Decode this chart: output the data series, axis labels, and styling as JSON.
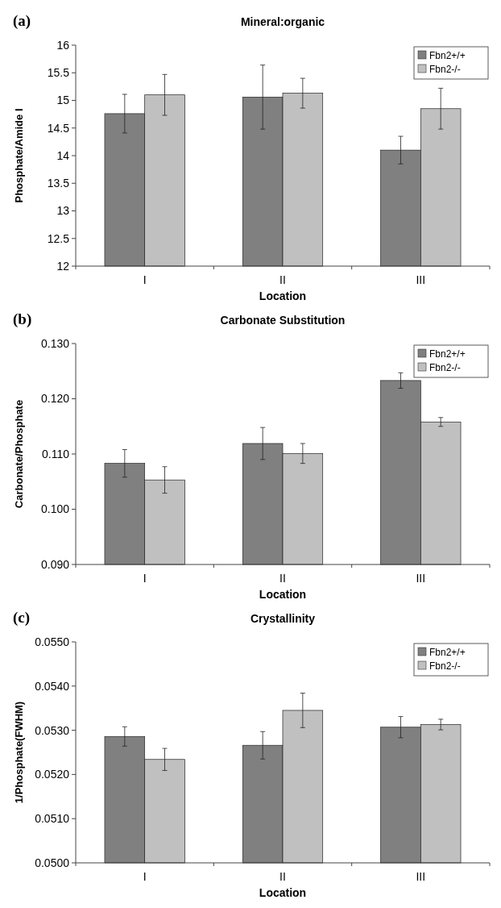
{
  "chart_data": [
    {
      "type": "bar",
      "title": "Mineral:organic",
      "xlabel": "Location",
      "ylabel": "Phosphate/Amide I",
      "annotations": [
        "(a)"
      ],
      "categories": [
        "I",
        "II",
        "III"
      ],
      "ylim": [
        12,
        16
      ],
      "yticks": [
        12,
        12.5,
        13,
        13.5,
        14,
        14.5,
        15,
        15.5,
        16
      ],
      "legend": "top right",
      "series": [
        {
          "name": "Fbn2+/+",
          "color": "#808080",
          "values": [
            14.76,
            15.06,
            14.1
          ],
          "errors": [
            0.35,
            0.58,
            0.25
          ]
        },
        {
          "name": "Fbn2-/-",
          "color": "#c0c0c0",
          "values": [
            15.1,
            15.13,
            14.85
          ],
          "errors": [
            0.37,
            0.27,
            0.37
          ]
        }
      ]
    },
    {
      "type": "bar",
      "title": "Carbonate Substitution",
      "xlabel": "Location",
      "ylabel": "Carbonate/Phosphate",
      "annotations": [
        "(b)"
      ],
      "categories": [
        "I",
        "II",
        "III"
      ],
      "ylim": [
        0.09,
        0.13
      ],
      "yticks": [
        {
          "value": 0.09,
          "label": "0.090"
        },
        {
          "value": 0.1,
          "label": "0.100"
        },
        {
          "value": 0.11,
          "label": "0.110"
        },
        {
          "value": 0.12,
          "label": "0.120"
        },
        {
          "value": 0.13,
          "label": "0.130"
        }
      ],
      "legend": "top right",
      "series": [
        {
          "name": "Fbn2+/+",
          "color": "#808080",
          "values": [
            0.1083,
            0.1119,
            0.1233
          ],
          "errors": [
            0.0025,
            0.0029,
            0.0014
          ]
        },
        {
          "name": "Fbn2-/-",
          "color": "#c0c0c0",
          "values": [
            0.1053,
            0.1101,
            0.1158
          ],
          "errors": [
            0.0024,
            0.0018,
            0.0008
          ]
        }
      ]
    },
    {
      "type": "bar",
      "title": "Crystallinity",
      "xlabel": "Location",
      "ylabel": "1/Phosphate(FWHM)",
      "annotations": [
        "(c)"
      ],
      "categories": [
        "I",
        "II",
        "III"
      ],
      "ylim": [
        0.05,
        0.055
      ],
      "yticks": [
        {
          "value": 0.05,
          "label": "0.0500"
        },
        {
          "value": 0.051,
          "label": "0.0510"
        },
        {
          "value": 0.052,
          "label": "0.0520"
        },
        {
          "value": 0.053,
          "label": "0.0530"
        },
        {
          "value": 0.054,
          "label": "0.0540"
        },
        {
          "value": 0.055,
          "label": "0.0550"
        }
      ],
      "legend": "top right",
      "series": [
        {
          "name": "Fbn2+/+",
          "color": "#808080",
          "values": [
            0.05286,
            0.05266,
            0.05307
          ],
          "errors": [
            0.00022,
            0.00031,
            0.00024
          ]
        },
        {
          "name": "Fbn2-/-",
          "color": "#c0c0c0",
          "values": [
            0.05234,
            0.05345,
            0.05313
          ],
          "errors": [
            0.00025,
            0.00039,
            0.00012
          ]
        }
      ]
    }
  ]
}
